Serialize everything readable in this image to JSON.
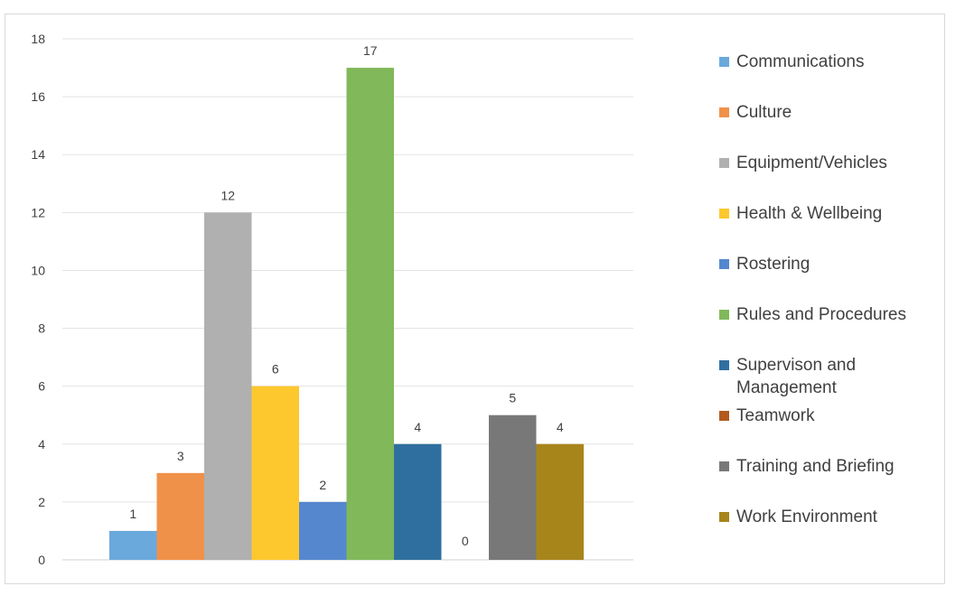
{
  "chart_data": {
    "type": "bar",
    "title": "",
    "xlabel": "",
    "ylabel": "",
    "ylim": [
      0,
      18
    ],
    "yticks": [
      0,
      2,
      4,
      6,
      8,
      10,
      12,
      14,
      16,
      18
    ],
    "grid": true,
    "legend_position": "right",
    "categories": [
      "Communications",
      "Culture",
      "Equipment/Vehicles",
      "Health & Wellbeing",
      "Rostering",
      "Rules and Procedures",
      "Supervison and Management",
      "Teamwork",
      "Training and Briefing",
      "Work Environment"
    ],
    "values": [
      1,
      3,
      12,
      6,
      2,
      17,
      4,
      0,
      5,
      4
    ],
    "colors": [
      "#6aa9dc",
      "#f0914a",
      "#b0b0b0",
      "#fdc72e",
      "#5587cf",
      "#80b85a",
      "#2f6f9f",
      "#b25a1e",
      "#787878",
      "#a8851b"
    ],
    "data_labels": [
      "1",
      "3",
      "12",
      "6",
      "2",
      "17",
      "4",
      "0",
      "5",
      "4"
    ]
  },
  "legend": {
    "items": [
      {
        "label": "Communications",
        "color": "#6aa9dc"
      },
      {
        "label": "Culture",
        "color": "#f0914a"
      },
      {
        "label": "Equipment/Vehicles",
        "color": "#b0b0b0"
      },
      {
        "label": "Health & Wellbeing",
        "color": "#fdc72e"
      },
      {
        "label": "Rostering",
        "color": "#5587cf"
      },
      {
        "label": "Rules and Procedures",
        "color": "#80b85a"
      },
      {
        "label": "Supervison and Management",
        "color": "#2f6f9f"
      },
      {
        "label": "Teamwork",
        "color": "#b25a1e"
      },
      {
        "label": "Training and Briefing",
        "color": "#787878"
      },
      {
        "label": "Work Environment",
        "color": "#a8851b"
      }
    ]
  }
}
